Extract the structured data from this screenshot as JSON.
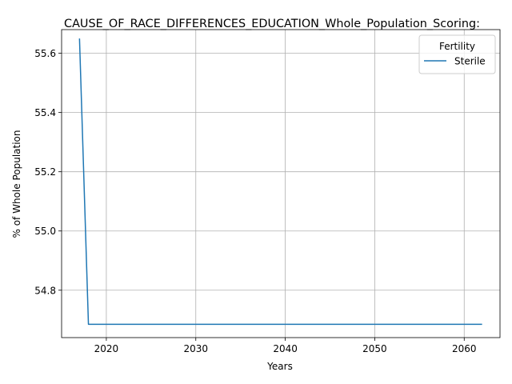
{
  "chart_data": {
    "type": "line",
    "title": "CAUSE_OF_RACE_DIFFERENCES_EDUCATION_Whole_Population_Scoring:",
    "xlabel": "Years",
    "ylabel": "% of Whole Population",
    "xlim": [
      2015,
      2064
    ],
    "ylim": [
      54.64,
      55.68
    ],
    "xticks": [
      2020,
      2030,
      2040,
      2050,
      2060
    ],
    "yticks": [
      54.8,
      55.0,
      55.2,
      55.4,
      55.6
    ],
    "xtick_labels": [
      "2020",
      "2030",
      "2040",
      "2050",
      "2060"
    ],
    "ytick_labels": [
      "54.8",
      "55.0",
      "55.2",
      "55.4",
      "55.6"
    ],
    "grid": true,
    "legend": {
      "title": "Fertility",
      "position": "top-right"
    },
    "series": [
      {
        "name": "Sterile",
        "color": "#1f77b4",
        "x": [
          2017,
          2018,
          2019,
          2020,
          2021,
          2022,
          2023,
          2024,
          2025,
          2026,
          2027,
          2028,
          2029,
          2030,
          2031,
          2032,
          2033,
          2034,
          2035,
          2036,
          2037,
          2038,
          2039,
          2040,
          2041,
          2042,
          2043,
          2044,
          2045,
          2046,
          2047,
          2048,
          2049,
          2050,
          2051,
          2052,
          2053,
          2054,
          2055,
          2056,
          2057,
          2058,
          2059,
          2060,
          2061,
          2062
        ],
        "y": [
          55.65,
          54.685,
          54.685,
          54.685,
          54.685,
          54.685,
          54.685,
          54.685,
          54.685,
          54.685,
          54.685,
          54.685,
          54.685,
          54.685,
          54.685,
          54.685,
          54.685,
          54.685,
          54.685,
          54.685,
          54.685,
          54.685,
          54.685,
          54.685,
          54.685,
          54.685,
          54.685,
          54.685,
          54.685,
          54.685,
          54.685,
          54.685,
          54.685,
          54.685,
          54.685,
          54.685,
          54.685,
          54.685,
          54.685,
          54.685,
          54.685,
          54.685,
          54.685,
          54.685,
          54.685,
          54.685
        ]
      }
    ]
  }
}
